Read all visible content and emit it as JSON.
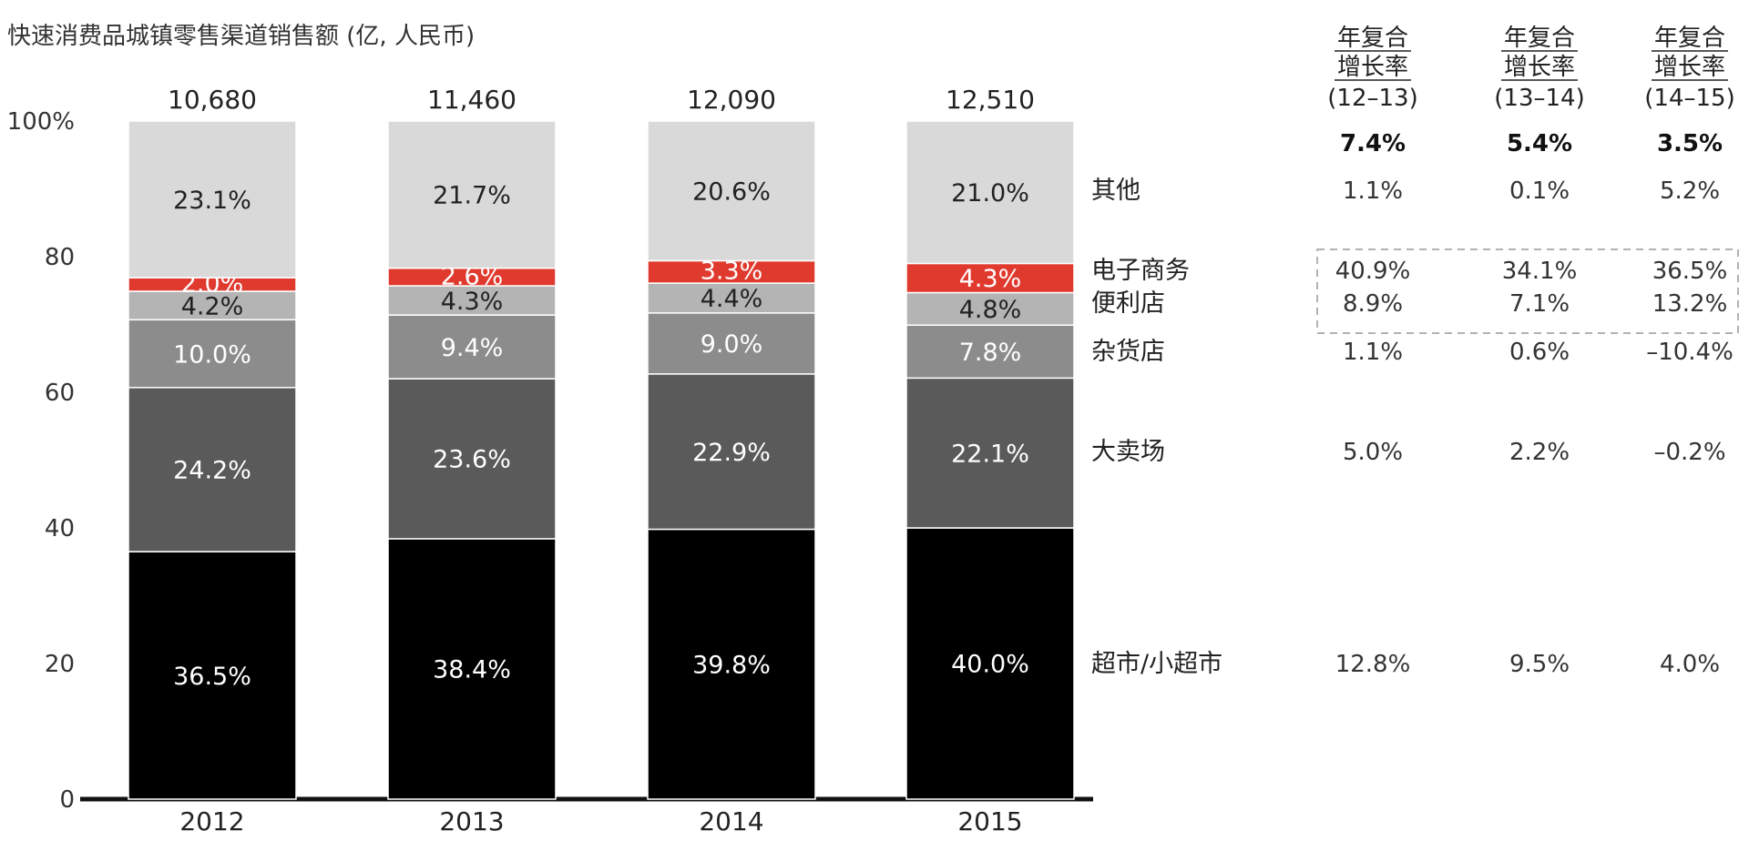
{
  "chart_data": {
    "type": "bar",
    "stacked": true,
    "normalized": true,
    "title": "快速消费品城镇零售渠道销售额 (亿, 人民币)",
    "categories": [
      "2012",
      "2013",
      "2014",
      "2015"
    ],
    "totals": [
      "10,680",
      "11,460",
      "12,090",
      "12,510"
    ],
    "y_ticks": [
      "0",
      "20",
      "40",
      "60",
      "80",
      "100%"
    ],
    "ylim": [
      0,
      100
    ],
    "series": [
      {
        "name": "超市/小超市",
        "values": [
          36.5,
          38.4,
          39.8,
          40.0
        ],
        "labels": [
          "36.5%",
          "38.4%",
          "39.8%",
          "40.0%"
        ],
        "color": "#000000",
        "text_color": "#ffffff"
      },
      {
        "name": "大卖场",
        "values": [
          24.2,
          23.6,
          22.9,
          22.1
        ],
        "labels": [
          "24.2%",
          "23.6%",
          "22.9%",
          "22.1%"
        ],
        "color": "#5a5a5a",
        "text_color": "#ffffff"
      },
      {
        "name": "杂货店",
        "values": [
          10.0,
          9.4,
          9.0,
          7.8
        ],
        "labels": [
          "10.0%",
          "9.4%",
          "9.0%",
          "7.8%"
        ],
        "color": "#8c8c8c",
        "text_color": "#ffffff"
      },
      {
        "name": "便利店",
        "values": [
          4.2,
          4.3,
          4.4,
          4.8
        ],
        "labels": [
          "4.2%",
          "4.3%",
          "4.4%",
          "4.8%"
        ],
        "color": "#b4b4b4",
        "text_color": "#222222"
      },
      {
        "name": "电子商务",
        "values": [
          2.0,
          2.6,
          3.3,
          4.3
        ],
        "labels": [
          "2.0%",
          "2.6%",
          "3.3%",
          "4.3%"
        ],
        "color": "#e03a2f",
        "text_color": "#ffffff"
      },
      {
        "name": "其他",
        "values": [
          23.1,
          21.7,
          20.6,
          21.0
        ],
        "labels": [
          "23.1%",
          "21.7%",
          "20.6%",
          "21.0%"
        ],
        "color": "#d9d9d9",
        "text_color": "#222222"
      }
    ],
    "cagr": {
      "headers": [
        [
          "年复合",
          "增长率",
          "(12–13)"
        ],
        [
          "年复合",
          "增长率",
          "(13–14)"
        ],
        [
          "年复合",
          "增长率",
          "(14–15)"
        ]
      ],
      "totals": [
        "7.4%",
        "5.4%",
        "3.5%"
      ],
      "rows": {
        "其他": [
          "1.1%",
          "0.1%",
          "5.2%"
        ],
        "电子商务": [
          "40.9%",
          "34.1%",
          "36.5%"
        ],
        "便利店": [
          "8.9%",
          "7.1%",
          "13.2%"
        ],
        "杂货店": [
          "1.1%",
          "0.6%",
          "–10.4%"
        ],
        "大卖场": [
          "5.0%",
          "2.2%",
          "–0.2%"
        ],
        "超市/小超市": [
          "12.8%",
          "9.5%",
          "4.0%"
        ]
      },
      "highlighted_rows": [
        "电子商务",
        "便利店"
      ]
    }
  }
}
